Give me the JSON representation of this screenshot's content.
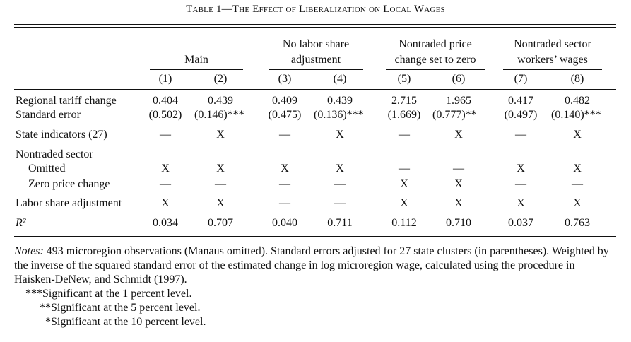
{
  "caption": "Table 1—The Effect of Liberalization on Local Wages",
  "groups": [
    {
      "line1": "",
      "line2": "Main"
    },
    {
      "line1": "No labor share",
      "line2": "adjustment"
    },
    {
      "line1": "Nontraded price",
      "line2": "change set to zero"
    },
    {
      "line1": "Nontraded sector",
      "line2": "workers’ wages"
    }
  ],
  "columns": [
    "(1)",
    "(2)",
    "(3)",
    "(4)",
    "(5)",
    "(6)",
    "(7)",
    "(8)"
  ],
  "rows": [
    {
      "label": "Regional tariff change",
      "values": [
        "0.404",
        "0.439",
        "0.409",
        "0.439",
        "2.715",
        "1.965",
        "0.417",
        "0.482"
      ]
    },
    {
      "label": "Standard error",
      "values": [
        "(0.502)",
        "(0.146)***",
        "(0.475)",
        "(0.136)***",
        "(1.669)",
        "(0.777)**",
        "(0.497)",
        "(0.140)***"
      ]
    },
    {
      "label": "State indicators (27)",
      "values": [
        "—",
        "X",
        "—",
        "X",
        "—",
        "X",
        "—",
        "X"
      ]
    },
    {
      "label": "Nontraded sector",
      "values": [
        "",
        "",
        "",
        "",
        "",
        "",
        "",
        ""
      ]
    },
    {
      "label": "Omitted",
      "values": [
        "X",
        "X",
        "X",
        "X",
        "—",
        "—",
        "X",
        "X"
      ]
    },
    {
      "label": "Zero price change",
      "values": [
        "—",
        "—",
        "—",
        "—",
        "X",
        "X",
        "—",
        "—"
      ]
    },
    {
      "label": "Labor share adjustment",
      "values": [
        "X",
        "X",
        "—",
        "—",
        "X",
        "X",
        "X",
        "X"
      ]
    },
    {
      "label": "R²",
      "values": [
        "0.034",
        "0.707",
        "0.040",
        "0.711",
        "0.112",
        "0.710",
        "0.037",
        "0.763"
      ]
    }
  ],
  "notes": {
    "lead": "Notes:",
    "text": " 493 microregion observations (Manaus omitted). Standard errors adjusted for 27 state clusters (in parentheses). Weighted by the inverse of the squared standard error of the estimated change in log microregion wage, calculated using the procedure in Haisken-DeNew, and Schmidt (1997).",
    "sig1": "***Significant at the 1 percent level.",
    "sig5": "**Significant at the 5 percent level.",
    "sig10": "*Significant at the 10 percent level."
  }
}
